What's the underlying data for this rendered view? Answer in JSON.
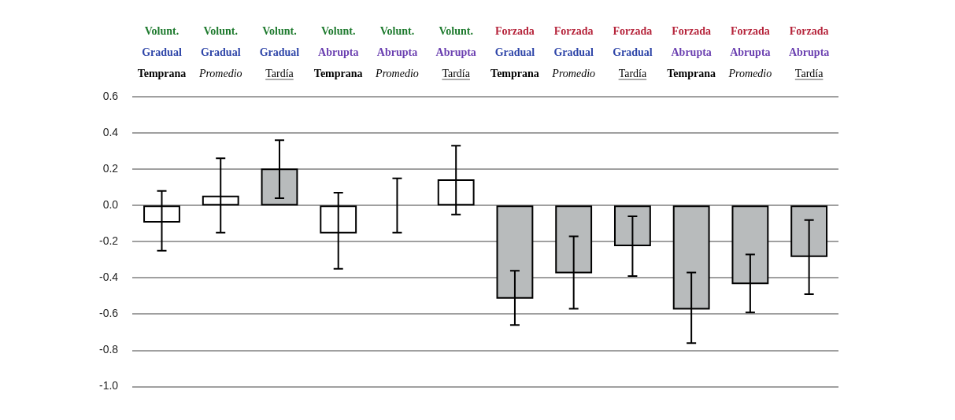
{
  "chart_data": {
    "type": "bar",
    "categories": [
      "Volunt.\nGradual\nTemprana",
      "Volunt.\nGradual\nPromedio",
      "Volunt.\nGradual\nTardía",
      "Volunt.\nAbrupta\nTemprana",
      "Volunt.\nAbrupta\nPromedio",
      "Volunt.\nAbrupta\nTardía",
      "Forzada\nGradual\nTemprana",
      "Forzada\nGradual\nPromedio",
      "Forzada\nGradual\nTardía",
      "Forzada\nAbrupta\nTemprana",
      "Forzada\nAbrupta\nPromedio",
      "Forzada\nAbrupta\nTardía"
    ],
    "values": [
      -0.09,
      0.05,
      0.2,
      -0.15,
      0.0,
      0.14,
      -0.51,
      -0.37,
      -0.22,
      -0.57,
      -0.43,
      -0.28
    ],
    "colors": [
      "#ffffff",
      "#ffffff",
      "#b8bbbc",
      "#ffffff",
      "#ffffff",
      "#ffffff",
      "#b8bbbc",
      "#b8bbbc",
      "#b8bbbc",
      "#b8bbbc",
      "#b8bbbc",
      "#b8bbbc"
    ],
    "errors": [
      [
        -0.25,
        0.08
      ],
      [
        -0.15,
        0.26
      ],
      [
        0.04,
        0.36
      ],
      [
        -0.35,
        0.07
      ],
      [
        -0.15,
        0.15
      ],
      [
        -0.05,
        0.33
      ],
      [
        -0.66,
        -0.36
      ],
      [
        -0.57,
        -0.17
      ],
      [
        -0.39,
        -0.06
      ],
      [
        -0.76,
        -0.37
      ],
      [
        -0.59,
        -0.27
      ],
      [
        -0.49,
        -0.08
      ]
    ],
    "ylim": [
      -1.0,
      0.6
    ],
    "yticks": [
      {
        "value": -1.0,
        "label": "-1.0"
      },
      {
        "value": -0.8,
        "label": "-0.8"
      },
      {
        "value": -0.6,
        "label": "-0.6"
      },
      {
        "value": -0.4,
        "label": "-0.4"
      },
      {
        "value": -0.2,
        "label": "-0.2"
      },
      {
        "value": 0,
        "label": "0.0"
      },
      {
        "value": 0.2,
        "label": "0.2"
      },
      {
        "value": 0.4,
        "label": "0.4"
      },
      {
        "value": 0.6,
        "label": "0.6"
      }
    ],
    "grid": "y"
  }
}
